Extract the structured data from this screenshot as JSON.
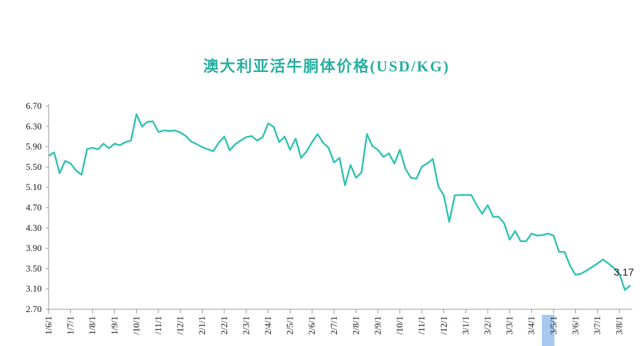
{
  "chart_data": {
    "type": "line",
    "title": "澳大利亚活牛胴体价格(USD/KG)",
    "categories": [
      "1/6/1",
      null,
      null,
      null,
      "1/7/1",
      null,
      null,
      null,
      "1/8/1",
      null,
      null,
      null,
      "1/9/1",
      null,
      null,
      null,
      "/10/1",
      null,
      null,
      null,
      "/11/1",
      null,
      null,
      null,
      "/12/1",
      null,
      null,
      null,
      "2/1/1",
      null,
      null,
      null,
      "2/2/1",
      null,
      null,
      null,
      "2/3/1",
      null,
      null,
      null,
      "2/4/1",
      null,
      null,
      null,
      "2/5/1",
      null,
      null,
      null,
      "2/6/1",
      null,
      null,
      null,
      "2/7/1",
      null,
      null,
      null,
      "2/8/1",
      null,
      null,
      null,
      "2/9/1",
      null,
      null,
      null,
      "/10/1",
      null,
      null,
      null,
      "/11/1",
      null,
      null,
      null,
      "/12/1",
      null,
      null,
      null,
      "3/1/1",
      null,
      null,
      null,
      "3/2/1",
      null,
      null,
      null,
      "3/3/1",
      null,
      null,
      null,
      "3/4/1",
      null,
      null,
      null,
      "3/5/1",
      null,
      null,
      null,
      "3/6/1",
      null,
      null,
      null,
      "3/7/1",
      null,
      null,
      null,
      "3/8/1",
      null,
      null
    ],
    "values": [
      5.72,
      5.79,
      5.38,
      5.62,
      5.57,
      5.43,
      5.35,
      5.85,
      5.88,
      5.85,
      5.96,
      5.87,
      5.96,
      5.93,
      5.99,
      6.02,
      6.54,
      6.3,
      6.39,
      6.4,
      6.19,
      6.22,
      6.21,
      6.22,
      6.18,
      6.11,
      6.0,
      5.95,
      5.89,
      5.85,
      5.81,
      5.98,
      6.1,
      5.83,
      5.95,
      6.02,
      6.09,
      6.11,
      6.02,
      6.09,
      6.36,
      6.29,
      5.99,
      6.1,
      5.84,
      6.06,
      5.68,
      5.81,
      5.99,
      6.15,
      5.98,
      5.88,
      5.59,
      5.68,
      5.14,
      5.54,
      5.29,
      5.39,
      6.15,
      5.91,
      5.84,
      5.7,
      5.77,
      5.57,
      5.84,
      5.47,
      5.29,
      5.27,
      5.51,
      5.57,
      5.66,
      5.12,
      4.94,
      4.42,
      4.94,
      4.95,
      4.95,
      4.95,
      4.75,
      4.58,
      4.75,
      4.52,
      4.52,
      4.39,
      4.07,
      4.24,
      4.04,
      4.04,
      4.19,
      4.15,
      4.16,
      4.19,
      4.15,
      3.83,
      3.83,
      3.56,
      3.38,
      3.4,
      3.46,
      3.53,
      3.6,
      3.68,
      3.6,
      3.51,
      3.4,
      3.08,
      3.17
    ],
    "color": "#34c4b4",
    "ylim": [
      2.7,
      6.7
    ],
    "yticks": [
      {
        "value": 2.7,
        "label": "2.70"
      },
      {
        "value": 3.1,
        "label": "3.10"
      },
      {
        "value": 3.5,
        "label": "3.50"
      },
      {
        "value": 3.9,
        "label": "3.90"
      },
      {
        "value": 4.3,
        "label": "4.30"
      },
      {
        "value": 4.7,
        "label": "4.70"
      },
      {
        "value": 5.1,
        "label": "5.10"
      },
      {
        "value": 5.5,
        "label": "5.50"
      },
      {
        "value": 5.9,
        "label": "5.90"
      },
      {
        "value": 6.3,
        "label": "6.30"
      },
      {
        "value": 6.7,
        "label": "6.70"
      }
    ]
  }
}
